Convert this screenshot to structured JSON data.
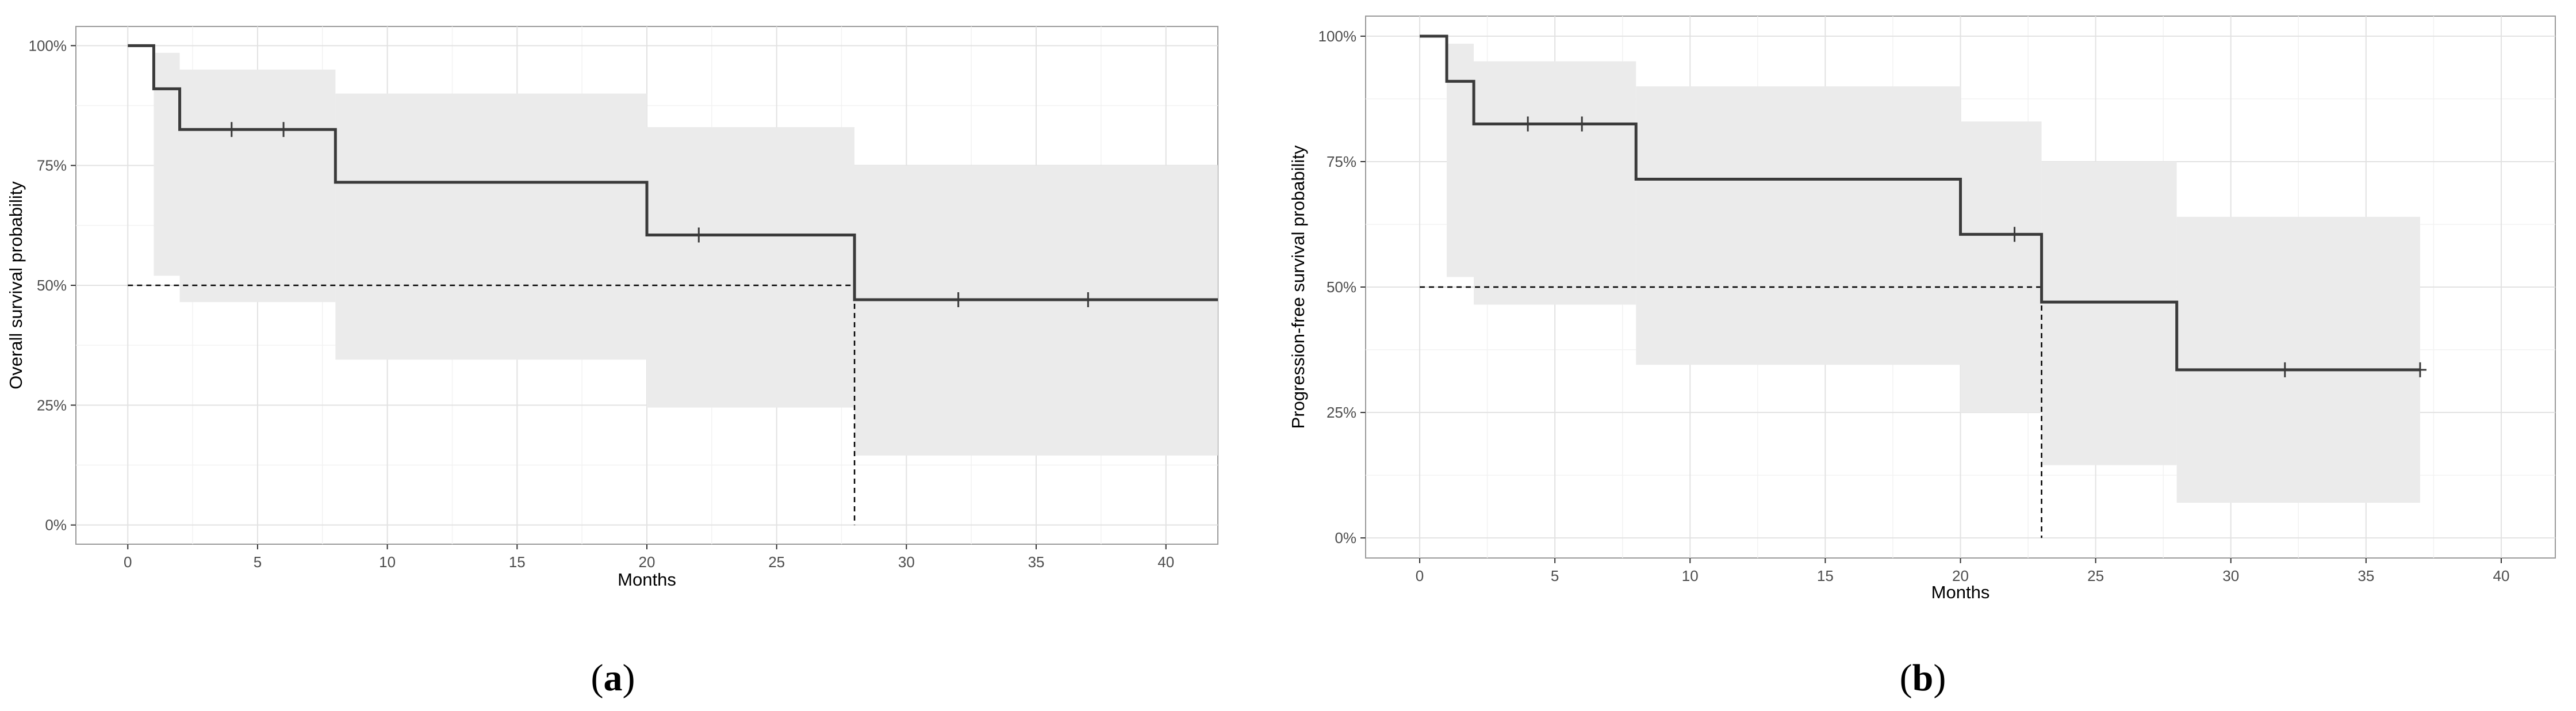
{
  "colors": {
    "curve": "#3a3a3a",
    "band": "#ebebeb",
    "grid_major": "#e2e2e2",
    "grid_minor": "#f2f2f2",
    "panel_border": "#9a9a9a",
    "median_line": "#000000"
  },
  "chart_data": [
    {
      "type": "line",
      "subtype": "kaplan-meier",
      "panel_label": "a",
      "title": "",
      "xlabel": "Months",
      "ylabel": "Overall survival probability",
      "xlim": [
        -2,
        42
      ],
      "ylim": [
        -0.04,
        1.04
      ],
      "x_ticks": [
        0,
        5,
        10,
        15,
        20,
        25,
        30,
        35,
        40
      ],
      "x_tick_labels": [
        "0",
        "5",
        "10",
        "15",
        "20",
        "25",
        "30",
        "35",
        "40"
      ],
      "y_ticks": [
        0,
        0.25,
        0.5,
        0.75,
        1.0
      ],
      "y_tick_labels": [
        "0%",
        "25%",
        "50%",
        "75%",
        "100%"
      ],
      "grid": true,
      "legend": "none",
      "survival_steps": {
        "x": [
          0,
          1,
          2,
          8,
          20,
          28,
          42
        ],
        "y": [
          1.0,
          0.91,
          0.825,
          0.715,
          0.605,
          0.47,
          0.47
        ]
      },
      "confidence_band": {
        "x": [
          1,
          2,
          8,
          20,
          28,
          42
        ],
        "lower": [
          0.52,
          0.465,
          0.345,
          0.245,
          0.145,
          0.145
        ],
        "upper": [
          0.985,
          0.95,
          0.9,
          0.83,
          0.75,
          0.75
        ]
      },
      "censor_times": [
        4,
        6,
        22,
        32,
        37
      ],
      "median_survival": {
        "x": 28,
        "y": 0.5
      }
    },
    {
      "type": "line",
      "subtype": "kaplan-meier",
      "panel_label": "b",
      "title": "",
      "xlabel": "Months",
      "ylabel": "Progression-free survival probability",
      "xlim": [
        -2,
        42
      ],
      "ylim": [
        -0.04,
        1.04
      ],
      "x_ticks": [
        0,
        5,
        10,
        15,
        20,
        25,
        30,
        35,
        40
      ],
      "x_tick_labels": [
        "0",
        "5",
        "10",
        "15",
        "20",
        "25",
        "30",
        "35",
        "40"
      ],
      "y_ticks": [
        0,
        0.25,
        0.5,
        0.75,
        1.0
      ],
      "y_tick_labels": [
        "0%",
        "25%",
        "50%",
        "75%",
        "100%"
      ],
      "grid": true,
      "legend": "none",
      "survival_steps": {
        "x": [
          0,
          1,
          2,
          8,
          20,
          23,
          28,
          37
        ],
        "y": [
          1.0,
          0.91,
          0.825,
          0.715,
          0.605,
          0.47,
          0.335,
          0.335
        ]
      },
      "confidence_band": {
        "x": [
          1,
          2,
          8,
          20,
          23,
          28,
          37
        ],
        "lower": [
          0.52,
          0.465,
          0.345,
          0.25,
          0.145,
          0.07,
          0.07
        ],
        "upper": [
          0.985,
          0.95,
          0.9,
          0.83,
          0.75,
          0.64,
          0.64
        ]
      },
      "censor_times": [
        4,
        6,
        22,
        32,
        37
      ],
      "median_survival": {
        "x": 23,
        "y": 0.5
      }
    }
  ]
}
